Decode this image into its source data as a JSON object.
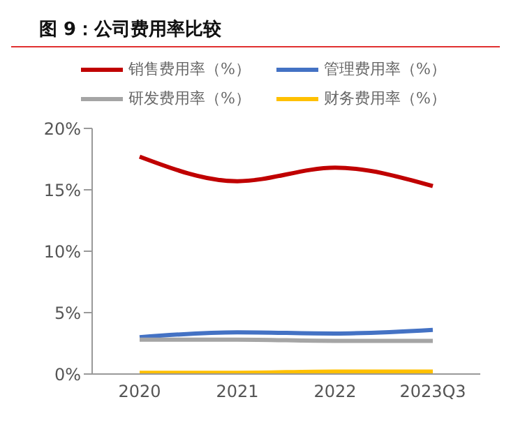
{
  "chart_data": {
    "type": "line",
    "title": "图 9：公司费用率比较",
    "categories": [
      "2020",
      "2021",
      "2022",
      "2023Q3"
    ],
    "series": [
      {
        "name": "销售费用率（%）",
        "color": "#c00000",
        "values": [
          17.7,
          15.7,
          16.8,
          15.3
        ]
      },
      {
        "name": "管理费用率（%）",
        "color": "#4472c4",
        "values": [
          3.0,
          3.4,
          3.3,
          3.6
        ]
      },
      {
        "name": "研发费用率（%）",
        "color": "#a5a5a5",
        "values": [
          2.8,
          2.8,
          2.7,
          2.7
        ]
      },
      {
        "name": "财务费用率（%）",
        "color": "#ffc000",
        "values": [
          0.1,
          0.1,
          0.2,
          0.2
        ]
      }
    ],
    "ylim": [
      0,
      20
    ],
    "yticks": [
      {
        "value": 0,
        "label": "0%"
      },
      {
        "value": 5,
        "label": "5%"
      },
      {
        "value": 10,
        "label": "10%"
      },
      {
        "value": 15,
        "label": "15%"
      },
      {
        "value": 20,
        "label": "20%"
      }
    ],
    "grid": false,
    "legend": "top",
    "marker": "none",
    "line_style": "solid"
  }
}
